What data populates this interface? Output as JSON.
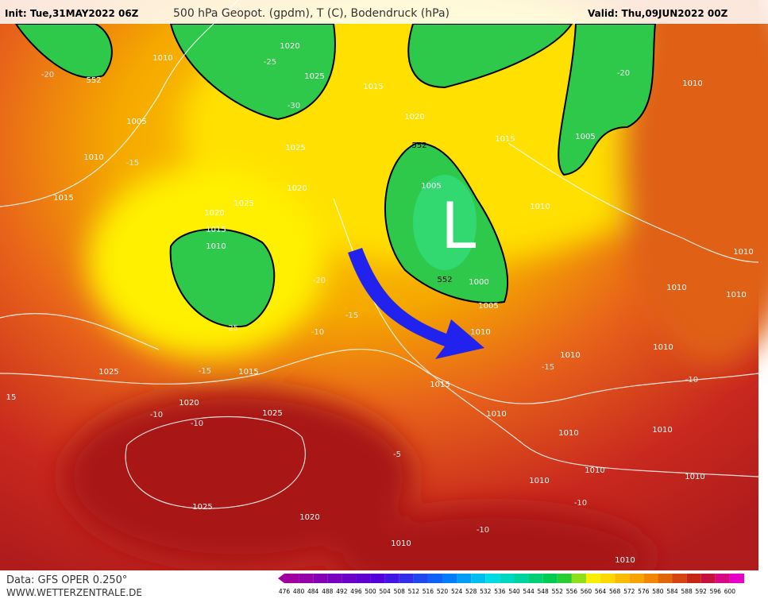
{
  "header": {
    "init": "Init: Tue,31MAY2022 06Z",
    "title": "500 hPa Geopot. (gpdm), T (C), Bodendruck (hPa)",
    "valid": "Valid: Thu,09JUN2022 00Z"
  },
  "footer": {
    "data": "Data: GFS OPER 0.250°",
    "site": "WWW.WETTERZENTRALE.DE"
  },
  "colorbar": {
    "labels": [
      476,
      480,
      484,
      488,
      492,
      496,
      500,
      504,
      508,
      512,
      516,
      520,
      524,
      528,
      532,
      536,
      540,
      544,
      548,
      552,
      556,
      560,
      564,
      568,
      572,
      576,
      580,
      584,
      588,
      592,
      596,
      600
    ]
  },
  "map": {
    "labels": [
      "1010",
      "552",
      "-20",
      "1020",
      "1025",
      "-25",
      "-30",
      "1015",
      "1020",
      "1005",
      "1010",
      "-15",
      "1025",
      "1020",
      "1015",
      "1020",
      "1025",
      "552",
      "1005",
      "L",
      "1015",
      "1005",
      "1010",
      "1010",
      "-20",
      "1015",
      "1010",
      "-25",
      "-20",
      "-15",
      "-10",
      "552",
      "1000",
      "1005",
      "1010",
      "1010",
      "-15",
      "1025",
      "-15",
      "1015",
      "1015",
      "1020",
      "-10",
      "-10",
      "1025",
      "1010",
      "1010",
      "1010",
      "1010",
      "1010",
      "1010",
      "1010",
      "-10",
      "-5",
      "1025",
      "1020",
      "1010",
      "1010",
      "-10",
      "1010",
      "-10",
      "1010",
      "1010",
      "15"
    ]
  }
}
